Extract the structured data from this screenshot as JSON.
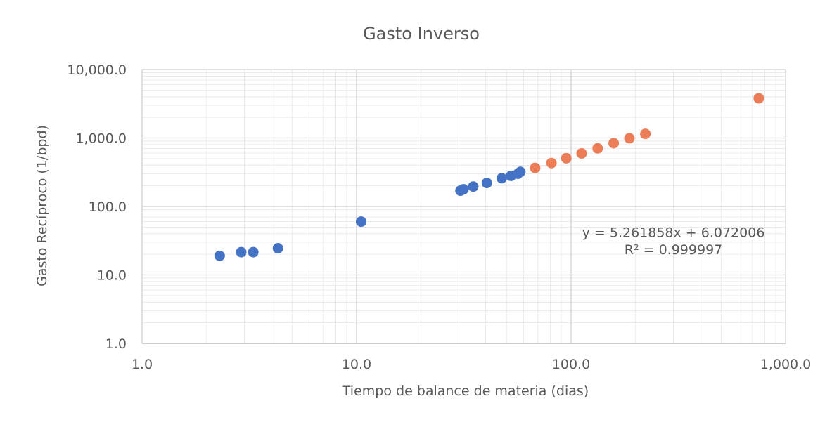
{
  "chart_data": {
    "type": "scatter",
    "title": "Gasto Inverso",
    "xlabel": "Tiempo de balance de materia (dias)",
    "ylabel": "Gasto Recíproco (1/bpd)",
    "x_scale": "log",
    "y_scale": "log",
    "xlim": [
      1,
      1000
    ],
    "ylim": [
      1,
      10000
    ],
    "x_tick_labels": [
      "1.0",
      "10.0",
      "100.0",
      "1,000.0"
    ],
    "y_tick_labels": [
      "1.0",
      "10.0",
      "100.0",
      "1,000.0",
      "10,000.0"
    ],
    "x_ticks": [
      1,
      10,
      100,
      1000
    ],
    "y_ticks": [
      1,
      10,
      100,
      1000,
      10000
    ],
    "grid": true,
    "series": [
      {
        "color": "#4472c4",
        "points": [
          {
            "x": 2.3,
            "y": 19
          },
          {
            "x": 2.9,
            "y": 21.5
          },
          {
            "x": 3.3,
            "y": 21.5
          },
          {
            "x": 4.3,
            "y": 24.5
          },
          {
            "x": 10.5,
            "y": 60
          },
          {
            "x": 30.5,
            "y": 170
          },
          {
            "x": 31.5,
            "y": 178
          },
          {
            "x": 35,
            "y": 195
          },
          {
            "x": 40.5,
            "y": 220
          },
          {
            "x": 47.5,
            "y": 258
          },
          {
            "x": 52.5,
            "y": 280
          },
          {
            "x": 56.5,
            "y": 300
          },
          {
            "x": 58,
            "y": 320
          }
        ]
      },
      {
        "color": "#ed7d57",
        "points": [
          {
            "x": 68,
            "y": 365
          },
          {
            "x": 81,
            "y": 430
          },
          {
            "x": 95,
            "y": 505
          },
          {
            "x": 112,
            "y": 595
          },
          {
            "x": 133,
            "y": 705
          },
          {
            "x": 158,
            "y": 840
          },
          {
            "x": 187,
            "y": 990
          },
          {
            "x": 222,
            "y": 1150
          },
          {
            "x": 750,
            "y": 3800
          }
        ]
      }
    ],
    "annotations": [
      {
        "text": "y = 5.261858x + 6.072006",
        "x": 300,
        "y": 36
      },
      {
        "text": "R² = 0.999997",
        "x": 300,
        "y": 20
      }
    ]
  }
}
